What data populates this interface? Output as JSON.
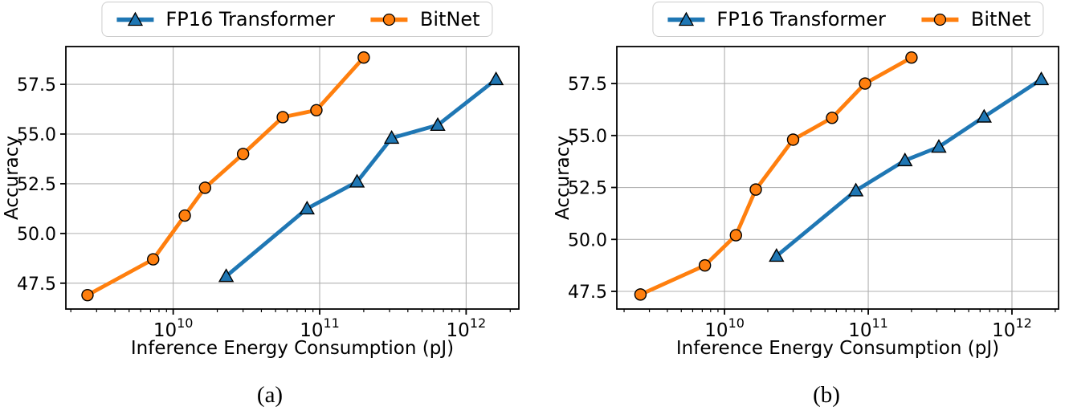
{
  "figure": {
    "captions": {
      "a": "(a)",
      "b": "(b)"
    },
    "colors": {
      "fp16_blue": "#1f77b4",
      "bitnet_orange": "#ff7f0e",
      "grid_gray": "#b0b0b0",
      "spine_black": "#000000",
      "legend_edge": "#cccccc",
      "background": "#ffffff"
    }
  },
  "legend": {
    "position": "upper center, above axes",
    "items": [
      {
        "label": "FP16 Transformer",
        "color": "#1f77b4",
        "marker": "triangle"
      },
      {
        "label": "BitNet",
        "color": "#ff7f0e",
        "marker": "circle"
      }
    ]
  },
  "chart_data": [
    {
      "id": "a",
      "caption": "(a)",
      "type": "line",
      "xscale": "log",
      "xlabel": "Inference Energy Consumption (pJ)",
      "ylabel": "Accuracy",
      "xticks": [
        10000000000.0,
        100000000000.0,
        1000000000000.0
      ],
      "yticks": [
        47.5,
        50.0,
        52.5,
        55.0,
        57.5
      ],
      "xlim": [
        1850000000.0,
        2290000000000.0
      ],
      "ylim": [
        46.2,
        59.4
      ],
      "grid": true,
      "series": [
        {
          "name": "FP16 Transformer",
          "color": "#1f77b4",
          "marker": "triangle",
          "x": [
            23000000000.0,
            82000000000.0,
            180000000000.0,
            310000000000.0,
            640000000000.0,
            1600000000000.0
          ],
          "y": [
            47.85,
            51.25,
            52.6,
            54.8,
            55.45,
            57.75
          ]
        },
        {
          "name": "BitNet",
          "color": "#ff7f0e",
          "marker": "circle",
          "x": [
            2600000000.0,
            7300000000.0,
            12000000000.0,
            16500000000.0,
            30000000000.0,
            56000000000.0,
            95000000000.0,
            200000000000.0
          ],
          "y": [
            46.9,
            48.7,
            50.9,
            52.3,
            54.0,
            55.85,
            56.2,
            58.85
          ]
        }
      ]
    },
    {
      "id": "b",
      "caption": "(b)",
      "type": "line",
      "xscale": "log",
      "xlabel": "Inference Energy Consumption (pJ)",
      "ylabel": "Accuracy",
      "xticks": [
        10000000000.0,
        100000000000.0,
        1000000000000.0
      ],
      "yticks": [
        47.5,
        50.0,
        52.5,
        55.0,
        57.5
      ],
      "xlim": [
        1780000000.0,
        2110000000000.0
      ],
      "ylim": [
        46.65,
        59.28
      ],
      "grid": true,
      "series": [
        {
          "name": "FP16 Transformer",
          "color": "#1f77b4",
          "marker": "triangle",
          "x": [
            23000000000.0,
            82000000000.0,
            180000000000.0,
            310000000000.0,
            640000000000.0,
            1600000000000.0
          ],
          "y": [
            49.2,
            52.35,
            53.8,
            54.45,
            55.9,
            57.7
          ]
        },
        {
          "name": "BitNet",
          "color": "#ff7f0e",
          "marker": "circle",
          "x": [
            2600000000.0,
            7300000000.0,
            12000000000.0,
            16500000000.0,
            30000000000.0,
            56000000000.0,
            95000000000.0,
            200000000000.0
          ],
          "y": [
            47.35,
            48.75,
            50.2,
            52.4,
            54.8,
            55.85,
            57.5,
            58.75
          ]
        }
      ]
    }
  ]
}
